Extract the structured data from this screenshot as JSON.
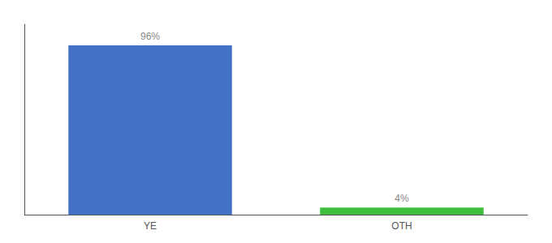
{
  "chart_data": {
    "type": "bar",
    "categories": [
      "YE",
      "OTH"
    ],
    "values": [
      96,
      4
    ],
    "colors": [
      "#4472C4",
      "#3DBE3D"
    ],
    "value_labels": [
      "96%",
      "4%"
    ],
    "data_labels": true,
    "ylim": [
      0,
      108
    ],
    "tick_labels": "x",
    "grid": false
  }
}
